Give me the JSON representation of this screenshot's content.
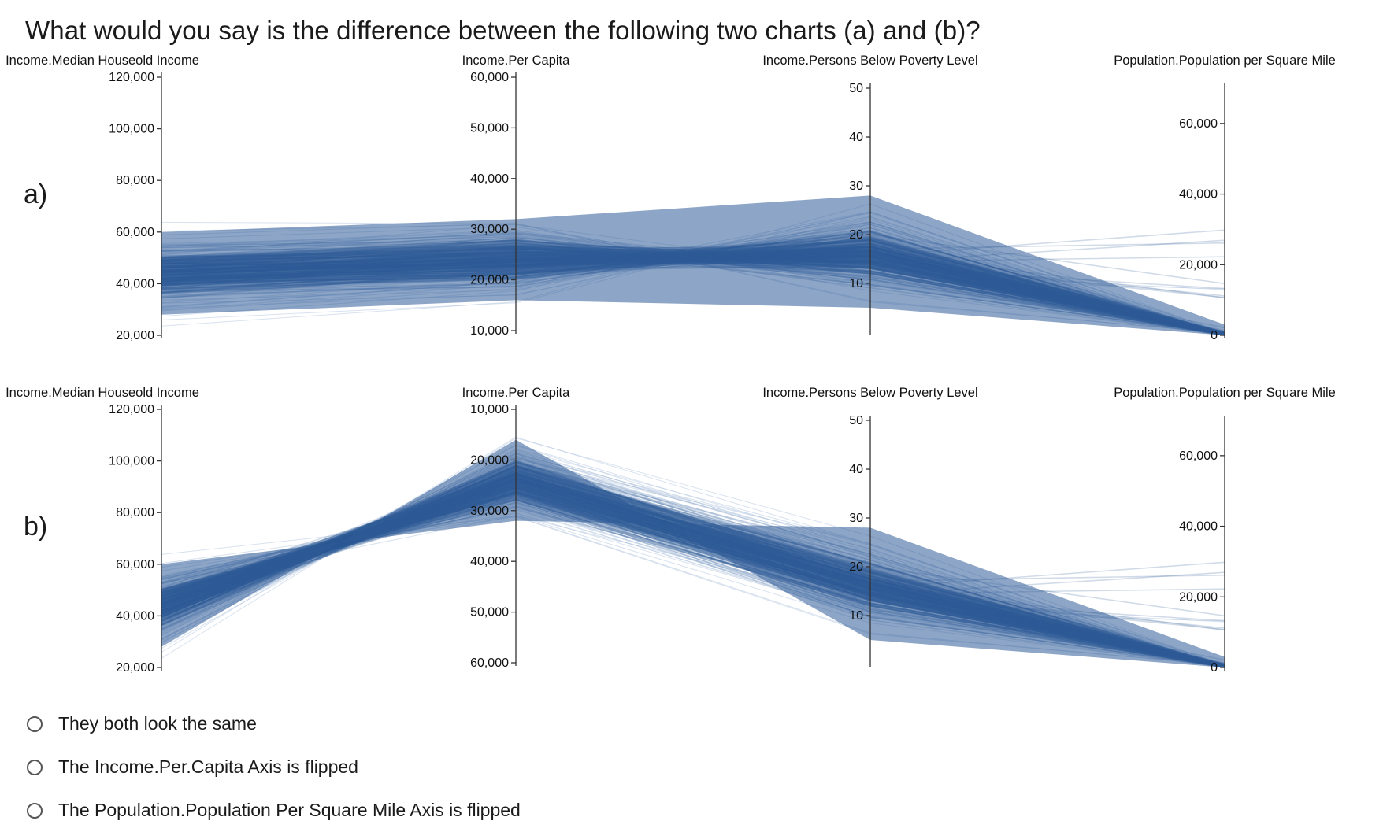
{
  "question": "What would you say is the difference between the following two charts (a) and (b)?",
  "colors": {
    "line": "#2f5b97",
    "line_faint": "#a9bfdc",
    "axis": "#333333"
  },
  "chart_data": [
    {
      "type": "parallel-coordinates",
      "panel_label": "a)",
      "axes": [
        {
          "title": "Income.Median Houseold Income",
          "ticks": [
            "120,000",
            "100,000",
            "80,000",
            "60,000",
            "40,000",
            "20,000"
          ],
          "range": [
            20000,
            120000
          ],
          "reversed": false
        },
        {
          "title": "Income.Per Capita",
          "ticks": [
            "60,000",
            "50,000",
            "40,000",
            "30,000",
            "20,000",
            "10,000"
          ],
          "range": [
            10000,
            60000
          ],
          "reversed": false
        },
        {
          "title": "Income.Persons Below Poverty Level",
          "ticks": [
            "50",
            "40",
            "30",
            "20",
            "10"
          ],
          "range": [
            0,
            50
          ],
          "reversed": false
        },
        {
          "title": "Population.Population per Square Mile",
          "ticks": [
            "60,000",
            "40,000",
            "20,000",
            "0"
          ],
          "range": [
            0,
            70000
          ],
          "reversed": false
        }
      ],
      "dense_band": {
        "income_median": [
          28000,
          60000
        ],
        "per_capita": [
          16000,
          32000
        ],
        "poverty": [
          5,
          28
        ],
        "pop_density": [
          0,
          3000
        ]
      }
    },
    {
      "type": "parallel-coordinates",
      "panel_label": "b)",
      "axes": [
        {
          "title": "Income.Median Houseold Income",
          "ticks": [
            "120,000",
            "100,000",
            "80,000",
            "60,000",
            "40,000",
            "20,000"
          ],
          "range": [
            20000,
            120000
          ],
          "reversed": false
        },
        {
          "title": "Income.Per Capita",
          "ticks": [
            "10,000",
            "20,000",
            "30,000",
            "40,000",
            "50,000",
            "60,000"
          ],
          "range": [
            10000,
            60000
          ],
          "reversed": true
        },
        {
          "title": "Income.Persons Below Poverty Level",
          "ticks": [
            "50",
            "40",
            "30",
            "20",
            "10"
          ],
          "range": [
            0,
            50
          ],
          "reversed": false
        },
        {
          "title": "Population.Population per Square Mile",
          "ticks": [
            "60,000",
            "40,000",
            "20,000",
            "0"
          ],
          "range": [
            0,
            70000
          ],
          "reversed": false
        }
      ],
      "dense_band": {
        "income_median": [
          28000,
          60000
        ],
        "per_capita": [
          16000,
          32000
        ],
        "poverty": [
          5,
          28
        ],
        "pop_density": [
          0,
          3000
        ]
      }
    }
  ],
  "options": [
    {
      "label": "They both look the same"
    },
    {
      "label": "The Income.Per.Capita Axis is flipped"
    },
    {
      "label": "The Population.Population Per Square Mile Axis is flipped"
    }
  ]
}
